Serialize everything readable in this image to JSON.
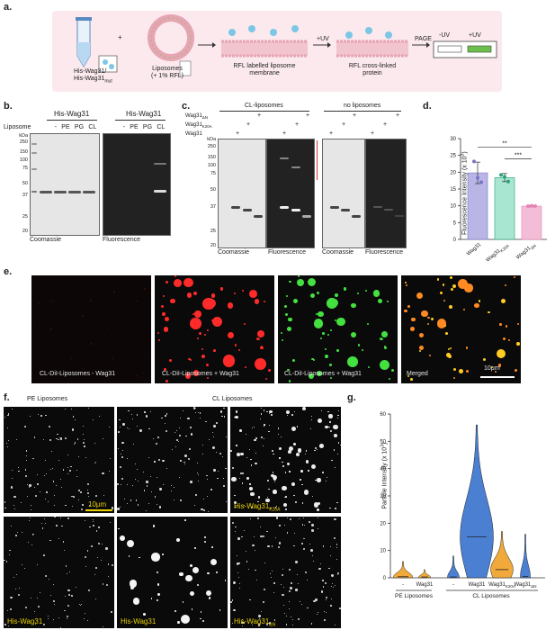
{
  "panel_a": {
    "label": "a.",
    "protein_label_1": "His-Wag31/",
    "protein_label_2": "His-Wag31",
    "protein_sub": "mut",
    "plus": "+",
    "liposome_label_1": "Liposomes",
    "liposome_label_2": "(+ 1% RFL)",
    "membrane_label_1": "RFL labelled liposome",
    "membrane_label_2": "membrane",
    "uv_label": "+UV",
    "crosslinked_1": "RFL cross-linked",
    "crosslinked_2": "protein",
    "page_label": "PAGE",
    "minus_uv": "-UV",
    "plus_uv": "+UV"
  },
  "panel_b": {
    "label": "b.",
    "header": "His-Wag31",
    "row_label": "Liposome",
    "lanes": [
      "-",
      "PE",
      "PG",
      "CL"
    ],
    "kda": "kDa",
    "markers": [
      "250",
      "150",
      "100",
      "75",
      "50",
      "37",
      "25",
      "20"
    ],
    "caption_left": "Coomassie",
    "caption_right": "Fluorescence"
  },
  "panel_c": {
    "label": "c.",
    "header_left": "CL-liposomes",
    "header_right": "no liposomes",
    "row1": "Wag31",
    "row1_sub": "ΔN",
    "row2": "Wag31",
    "row2_sub": "K20A",
    "row3": "Wag31",
    "plus": "+",
    "kda": "kDa",
    "markers": [
      "250",
      "150",
      "100",
      "75",
      "50",
      "37",
      "25",
      "20"
    ],
    "captions": [
      "Coomassie",
      "Fluorescence",
      "Coomassie",
      "Fluorescence"
    ]
  },
  "panel_d": {
    "label": "d.",
    "chart_data": {
      "type": "bar",
      "categories": [
        "Wag31",
        "Wag31 K20A",
        "Wag31 ΔN"
      ],
      "category_main": [
        "Wag31",
        "Wag31",
        "Wag31"
      ],
      "category_sub": [
        "",
        "K20A",
        "ΔN"
      ],
      "values": [
        19.8,
        18.4,
        9.9
      ],
      "errors": [
        3.2,
        1.2,
        0.2
      ],
      "points": [
        [
          23.2,
          18.3,
          17.0
        ],
        [
          19.2,
          18.6,
          17.2
        ],
        [
          9.9,
          10.0,
          9.9
        ]
      ],
      "colors": [
        "#b9b6e6",
        "#a9e6d2",
        "#f3bcd7"
      ],
      "point_colors": [
        "#7a74c9",
        "#2aa178",
        "#e985b3"
      ],
      "ylabel": "Fluorescence Intensity (x 10",
      "ylabel_exp": "3",
      "ylabel_end": ")",
      "ylim": [
        0,
        30
      ],
      "yticks": [
        "0",
        "5",
        "10",
        "15",
        "20",
        "25",
        "30"
      ],
      "sig_labels": [
        "**",
        "***"
      ]
    }
  },
  "panel_e": {
    "label": "e.",
    "images": [
      {
        "caption": "CL-DiI-Liposomes - Wag31"
      },
      {
        "caption": "CL-DiI-Liposomes + Wag31"
      },
      {
        "caption": "CL-DiI-Liposomes + Wag31"
      },
      {
        "caption": "Merged"
      }
    ],
    "scale": "10μm"
  },
  "panel_f": {
    "label": "f.",
    "header_left": "PE Liposomes",
    "header_right": "CL Liposomes",
    "scale": "10μm",
    "labels": [
      "His-Wag31",
      "His-Wag31",
      "His-Wag31"
    ],
    "label_k20a_main": "His-Wag31",
    "label_k20a_sub": "K20A",
    "label_dn_main": "His-Wag31",
    "label_dn_sub": "ΔN"
  },
  "panel_g": {
    "label": "g.",
    "chart_data": {
      "type": "violin",
      "categories": [
        "-",
        "Wag31",
        "-",
        "Wag31",
        "Wag31 K20A",
        "Wag31 ΔN"
      ],
      "medians": [
        0.4,
        0.3,
        0.3,
        15.0,
        3.0,
        0.5
      ],
      "max": [
        6,
        3,
        8,
        56,
        17,
        16
      ],
      "ylabel": "Particle Intensity (x 10",
      "ylabel_exp": "3",
      "ylabel_end": ")",
      "ylim": [
        0,
        60
      ],
      "yticks": [
        "0",
        "10",
        "20",
        "30",
        "40",
        "50",
        "60"
      ],
      "group_left": "PE Liposomes",
      "group_right": "CL Liposomes",
      "xlabels": [
        "-",
        "Wag31",
        "-",
        "Wag31",
        "Wag31",
        "Wag31"
      ],
      "xsubs": [
        "",
        "",
        "",
        "",
        "K20A",
        "ΔN"
      ]
    }
  }
}
